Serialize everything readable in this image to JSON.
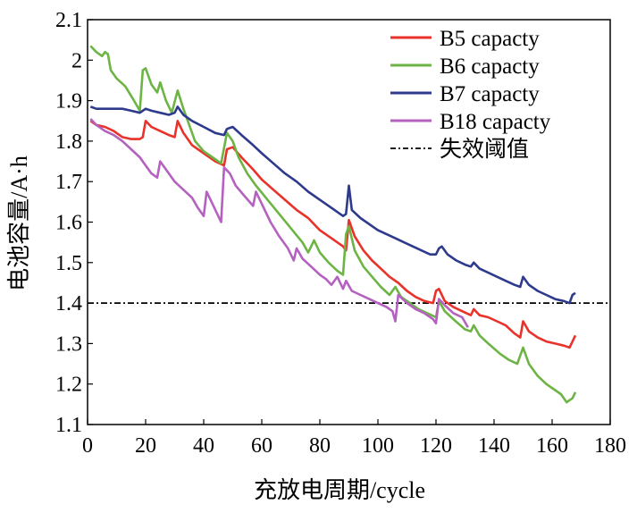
{
  "chart_data": {
    "type": "line",
    "title": "",
    "xlabel": "充放电周期/cycle",
    "ylabel": "电池容量/A·h",
    "xlim": [
      0,
      180
    ],
    "ylim": [
      1.1,
      2.1
    ],
    "xticks": [
      0,
      20,
      40,
      60,
      80,
      100,
      120,
      140,
      160,
      180
    ],
    "yticks": [
      1.1,
      1.2,
      1.3,
      1.4,
      1.5,
      1.6,
      1.7,
      1.8,
      1.9,
      2.0,
      2.1
    ],
    "xtick_labels": [
      "0",
      "20",
      "40",
      "60",
      "80",
      "100",
      "120",
      "140",
      "160",
      "180"
    ],
    "ytick_labels": [
      "1.1",
      "1.2",
      "1.3",
      "1.4",
      "1.5",
      "1.6",
      "1.7",
      "1.8",
      "1.9",
      "2",
      "2.1"
    ],
    "grid": false,
    "legend_position": "top-right",
    "threshold": {
      "name": "失效阈值",
      "value": 1.4,
      "color": "#000000",
      "style": "dashdot"
    },
    "series": [
      {
        "name": "B5 capacty",
        "color": "#e8322a",
        "points": [
          [
            1,
            1.85
          ],
          [
            3,
            1.84
          ],
          [
            6,
            1.835
          ],
          [
            9,
            1.825
          ],
          [
            12,
            1.81
          ],
          [
            15,
            1.805
          ],
          [
            18,
            1.805
          ],
          [
            19,
            1.81
          ],
          [
            20,
            1.85
          ],
          [
            22,
            1.835
          ],
          [
            25,
            1.825
          ],
          [
            28,
            1.815
          ],
          [
            30,
            1.81
          ],
          [
            31,
            1.85
          ],
          [
            33,
            1.82
          ],
          [
            36,
            1.79
          ],
          [
            40,
            1.77
          ],
          [
            44,
            1.75
          ],
          [
            47,
            1.74
          ],
          [
            48,
            1.78
          ],
          [
            50,
            1.785
          ],
          [
            53,
            1.76
          ],
          [
            57,
            1.73
          ],
          [
            60,
            1.705
          ],
          [
            64,
            1.68
          ],
          [
            68,
            1.655
          ],
          [
            72,
            1.63
          ],
          [
            76,
            1.61
          ],
          [
            80,
            1.58
          ],
          [
            84,
            1.56
          ],
          [
            88,
            1.54
          ],
          [
            89,
            1.53
          ],
          [
            90,
            1.605
          ],
          [
            92,
            1.565
          ],
          [
            95,
            1.53
          ],
          [
            98,
            1.505
          ],
          [
            101,
            1.485
          ],
          [
            104,
            1.465
          ],
          [
            107,
            1.45
          ],
          [
            110,
            1.43
          ],
          [
            113,
            1.415
          ],
          [
            116,
            1.405
          ],
          [
            119,
            1.4
          ],
          [
            120,
            1.43
          ],
          [
            121,
            1.435
          ],
          [
            123,
            1.405
          ],
          [
            126,
            1.39
          ],
          [
            129,
            1.38
          ],
          [
            132,
            1.37
          ],
          [
            133,
            1.385
          ],
          [
            135,
            1.37
          ],
          [
            138,
            1.365
          ],
          [
            141,
            1.355
          ],
          [
            144,
            1.345
          ],
          [
            147,
            1.325
          ],
          [
            149,
            1.315
          ],
          [
            150,
            1.355
          ],
          [
            152,
            1.33
          ],
          [
            155,
            1.315
          ],
          [
            158,
            1.305
          ],
          [
            161,
            1.3
          ],
          [
            164,
            1.295
          ],
          [
            166,
            1.29
          ],
          [
            167,
            1.305
          ],
          [
            168,
            1.32
          ]
        ]
      },
      {
        "name": "B6 capacty",
        "color": "#6cb544",
        "points": [
          [
            1,
            2.035
          ],
          [
            3,
            2.02
          ],
          [
            5,
            2.01
          ],
          [
            6,
            2.02
          ],
          [
            7,
            2.015
          ],
          [
            8,
            1.975
          ],
          [
            10,
            1.955
          ],
          [
            13,
            1.935
          ],
          [
            16,
            1.9
          ],
          [
            18,
            1.875
          ],
          [
            19,
            1.975
          ],
          [
            20,
            1.98
          ],
          [
            22,
            1.94
          ],
          [
            24,
            1.92
          ],
          [
            25,
            1.945
          ],
          [
            27,
            1.9
          ],
          [
            29,
            1.87
          ],
          [
            31,
            1.925
          ],
          [
            33,
            1.88
          ],
          [
            35,
            1.84
          ],
          [
            37,
            1.8
          ],
          [
            40,
            1.775
          ],
          [
            43,
            1.76
          ],
          [
            46,
            1.745
          ],
          [
            48,
            1.82
          ],
          [
            50,
            1.8
          ],
          [
            52,
            1.76
          ],
          [
            55,
            1.72
          ],
          [
            58,
            1.69
          ],
          [
            62,
            1.655
          ],
          [
            66,
            1.62
          ],
          [
            70,
            1.585
          ],
          [
            74,
            1.55
          ],
          [
            76,
            1.525
          ],
          [
            78,
            1.555
          ],
          [
            80,
            1.525
          ],
          [
            83,
            1.5
          ],
          [
            86,
            1.48
          ],
          [
            88,
            1.47
          ],
          [
            89,
            1.57
          ],
          [
            90,
            1.59
          ],
          [
            92,
            1.53
          ],
          [
            95,
            1.49
          ],
          [
            98,
            1.465
          ],
          [
            101,
            1.44
          ],
          [
            104,
            1.42
          ],
          [
            106,
            1.44
          ],
          [
            108,
            1.415
          ],
          [
            111,
            1.4
          ],
          [
            114,
            1.385
          ],
          [
            117,
            1.375
          ],
          [
            120,
            1.365
          ],
          [
            121,
            1.405
          ],
          [
            123,
            1.38
          ],
          [
            126,
            1.36
          ],
          [
            130,
            1.335
          ],
          [
            132,
            1.33
          ],
          [
            133,
            1.345
          ],
          [
            135,
            1.32
          ],
          [
            138,
            1.3
          ],
          [
            142,
            1.275
          ],
          [
            145,
            1.26
          ],
          [
            148,
            1.25
          ],
          [
            150,
            1.29
          ],
          [
            152,
            1.25
          ],
          [
            155,
            1.22
          ],
          [
            158,
            1.2
          ],
          [
            161,
            1.185
          ],
          [
            163,
            1.175
          ],
          [
            165,
            1.155
          ],
          [
            166,
            1.16
          ],
          [
            167,
            1.165
          ],
          [
            168,
            1.18
          ]
        ]
      },
      {
        "name": "B7 capacty",
        "color": "#2e3a8c",
        "points": [
          [
            1,
            1.885
          ],
          [
            3,
            1.88
          ],
          [
            6,
            1.88
          ],
          [
            9,
            1.88
          ],
          [
            12,
            1.88
          ],
          [
            15,
            1.875
          ],
          [
            18,
            1.87
          ],
          [
            19,
            1.875
          ],
          [
            20,
            1.88
          ],
          [
            22,
            1.875
          ],
          [
            25,
            1.87
          ],
          [
            28,
            1.865
          ],
          [
            30,
            1.87
          ],
          [
            31,
            1.885
          ],
          [
            33,
            1.865
          ],
          [
            36,
            1.85
          ],
          [
            40,
            1.835
          ],
          [
            44,
            1.82
          ],
          [
            47,
            1.815
          ],
          [
            48,
            1.83
          ],
          [
            50,
            1.835
          ],
          [
            53,
            1.815
          ],
          [
            57,
            1.79
          ],
          [
            60,
            1.77
          ],
          [
            64,
            1.745
          ],
          [
            68,
            1.72
          ],
          [
            72,
            1.7
          ],
          [
            76,
            1.675
          ],
          [
            80,
            1.655
          ],
          [
            84,
            1.635
          ],
          [
            88,
            1.615
          ],
          [
            89,
            1.62
          ],
          [
            90,
            1.69
          ],
          [
            91,
            1.63
          ],
          [
            94,
            1.61
          ],
          [
            97,
            1.595
          ],
          [
            100,
            1.58
          ],
          [
            103,
            1.57
          ],
          [
            106,
            1.56
          ],
          [
            109,
            1.55
          ],
          [
            112,
            1.54
          ],
          [
            115,
            1.53
          ],
          [
            118,
            1.52
          ],
          [
            120,
            1.52
          ],
          [
            121,
            1.535
          ],
          [
            122,
            1.54
          ],
          [
            124,
            1.52
          ],
          [
            127,
            1.505
          ],
          [
            130,
            1.495
          ],
          [
            132,
            1.49
          ],
          [
            133,
            1.5
          ],
          [
            135,
            1.485
          ],
          [
            138,
            1.475
          ],
          [
            141,
            1.465
          ],
          [
            144,
            1.455
          ],
          [
            147,
            1.445
          ],
          [
            149,
            1.44
          ],
          [
            150,
            1.465
          ],
          [
            152,
            1.445
          ],
          [
            155,
            1.43
          ],
          [
            158,
            1.42
          ],
          [
            161,
            1.41
          ],
          [
            164,
            1.405
          ],
          [
            166,
            1.4
          ],
          [
            167,
            1.42
          ],
          [
            168,
            1.425
          ]
        ]
      },
      {
        "name": "B18 capacty",
        "color": "#b461bf",
        "points": [
          [
            1,
            1.855
          ],
          [
            3,
            1.84
          ],
          [
            6,
            1.825
          ],
          [
            9,
            1.815
          ],
          [
            12,
            1.8
          ],
          [
            15,
            1.78
          ],
          [
            18,
            1.76
          ],
          [
            20,
            1.74
          ],
          [
            22,
            1.72
          ],
          [
            24,
            1.71
          ],
          [
            25,
            1.75
          ],
          [
            27,
            1.73
          ],
          [
            30,
            1.7
          ],
          [
            33,
            1.68
          ],
          [
            36,
            1.66
          ],
          [
            38,
            1.635
          ],
          [
            40,
            1.615
          ],
          [
            41,
            1.675
          ],
          [
            43,
            1.645
          ],
          [
            46,
            1.6
          ],
          [
            47,
            1.735
          ],
          [
            49,
            1.72
          ],
          [
            51,
            1.69
          ],
          [
            54,
            1.665
          ],
          [
            57,
            1.64
          ],
          [
            58,
            1.675
          ],
          [
            60,
            1.645
          ],
          [
            63,
            1.6
          ],
          [
            66,
            1.565
          ],
          [
            69,
            1.535
          ],
          [
            71,
            1.505
          ],
          [
            72,
            1.535
          ],
          [
            74,
            1.51
          ],
          [
            77,
            1.49
          ],
          [
            80,
            1.47
          ],
          [
            82,
            1.46
          ],
          [
            84,
            1.445
          ],
          [
            86,
            1.465
          ],
          [
            88,
            1.435
          ],
          [
            89,
            1.455
          ],
          [
            91,
            1.43
          ],
          [
            94,
            1.42
          ],
          [
            97,
            1.41
          ],
          [
            100,
            1.4
          ],
          [
            103,
            1.39
          ],
          [
            105,
            1.38
          ],
          [
            106,
            1.355
          ],
          [
            107,
            1.42
          ],
          [
            110,
            1.4
          ],
          [
            113,
            1.385
          ],
          [
            116,
            1.375
          ],
          [
            119,
            1.36
          ],
          [
            120,
            1.35
          ],
          [
            121,
            1.41
          ],
          [
            123,
            1.395
          ],
          [
            126,
            1.375
          ],
          [
            129,
            1.365
          ],
          [
            131,
            1.34
          ]
        ]
      }
    ]
  }
}
